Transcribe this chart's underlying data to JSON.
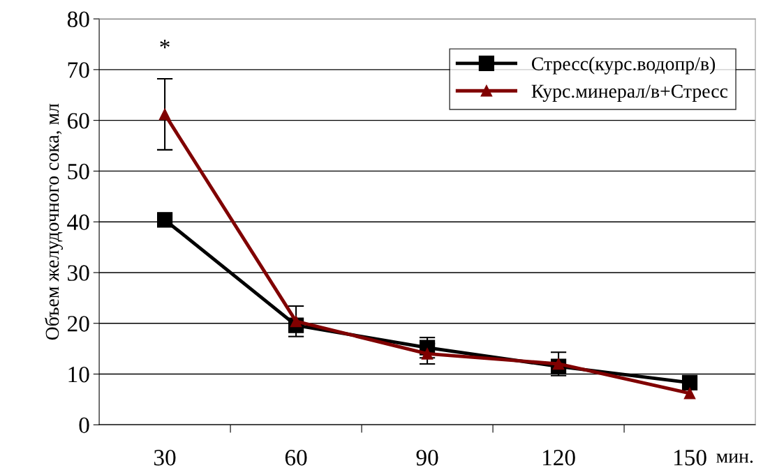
{
  "chart_data": {
    "type": "line",
    "ylabel": "Объем желудочного сока, мл",
    "xlabel": "мин.",
    "categories": [
      "30",
      "60",
      "90",
      "120",
      "150"
    ],
    "series": [
      {
        "name": "Стресс(курс.водопр/в)",
        "color": "#000000",
        "marker": "square",
        "values": [
          40.4,
          19.6,
          15.2,
          11.5,
          8.3
        ],
        "errors": [
          null,
          null,
          2,
          null,
          null
        ]
      },
      {
        "name": "Курс.минерал/в+Стресс",
        "color": "#800000",
        "marker": "triangle",
        "values": [
          61.2,
          20.4,
          14,
          12,
          6.2
        ],
        "errors": [
          7,
          3,
          2,
          2.3,
          null
        ]
      }
    ],
    "ylim": [
      0,
      80
    ],
    "yticks": [
      0,
      10,
      20,
      30,
      40,
      50,
      60,
      70,
      80
    ],
    "grid": "y",
    "legend": "top right",
    "annotations": [
      "*"
    ]
  }
}
